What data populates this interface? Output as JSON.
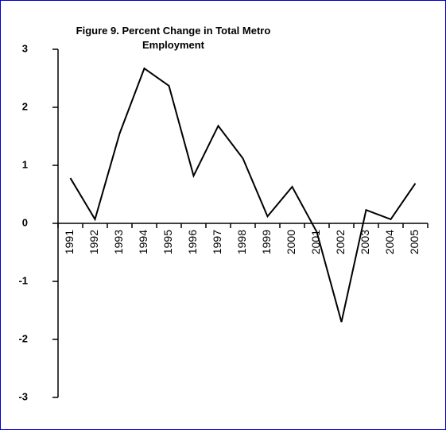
{
  "chart_data": {
    "type": "line",
    "title": "Figure 9. Percent Change in Total Metro Employment",
    "categories": [
      "1991",
      "1992",
      "1993",
      "1994",
      "1995",
      "1996",
      "1997",
      "1998",
      "1999",
      "2000",
      "2001",
      "2002",
      "2003",
      "2004",
      "2005"
    ],
    "values": [
      0.78,
      0.07,
      1.55,
      2.67,
      2.37,
      0.82,
      1.68,
      1.12,
      0.12,
      0.63,
      -0.15,
      -1.7,
      0.23,
      0.07,
      0.69
    ],
    "color": "#000000",
    "ylim": [
      -3,
      3
    ],
    "yticks": [
      -3,
      -2,
      -1,
      0,
      1,
      2,
      3
    ],
    "grid": false
  }
}
